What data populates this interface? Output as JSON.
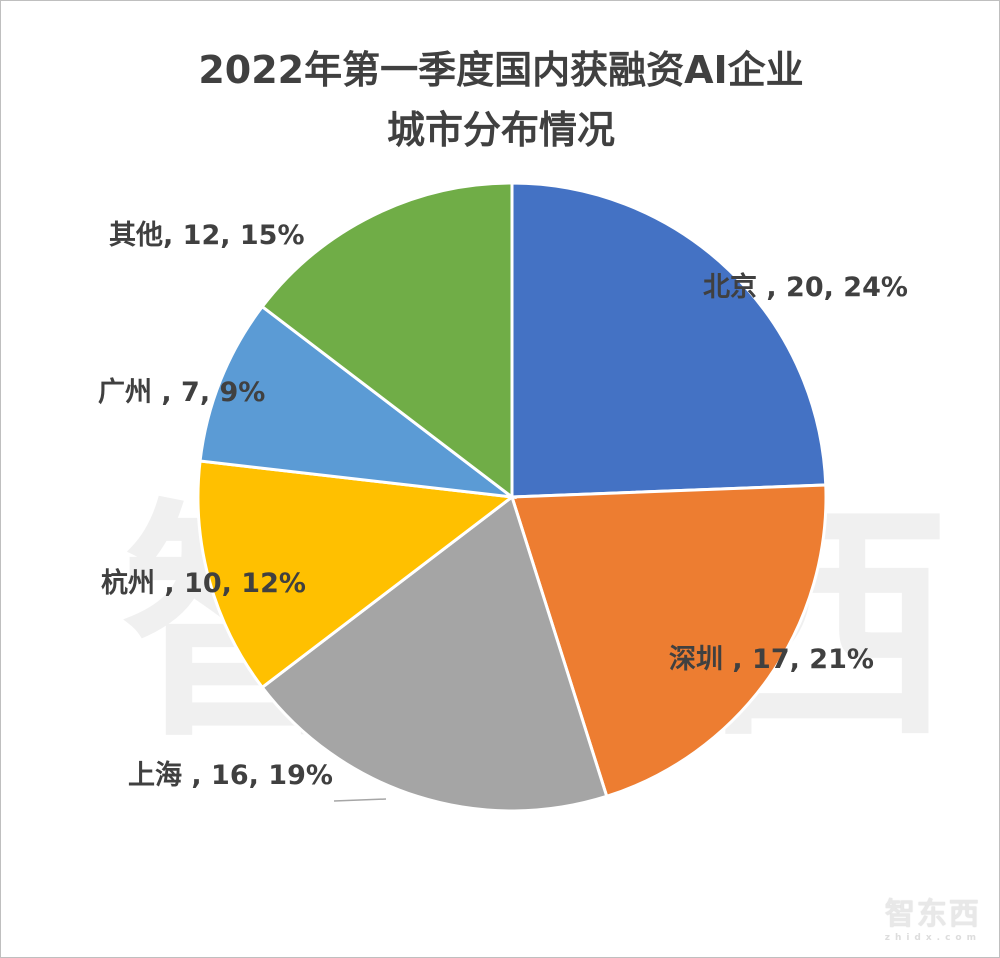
{
  "chart_data": {
    "type": "pie",
    "title_lines": [
      "2022年第一季度国内获融资AI企业",
      "城市分布情况"
    ],
    "start": "top",
    "direction": "clockwise",
    "slices": [
      {
        "name": "北京",
        "value": 20,
        "percent": 24,
        "color": "#4472C4",
        "label": "北京 , 20, 24%"
      },
      {
        "name": "深圳",
        "value": 17,
        "percent": 21,
        "color": "#ED7D31",
        "label": "深圳 , 17, 21%"
      },
      {
        "name": "上海",
        "value": 16,
        "percent": 19,
        "color": "#A5A5A5",
        "label": "上海 , 16, 19%"
      },
      {
        "name": "杭州",
        "value": 10,
        "percent": 12,
        "color": "#FFC000",
        "label": "杭州 , 10, 12%"
      },
      {
        "name": "广州",
        "value": 7,
        "percent": 9,
        "color": "#5B9BD5",
        "label": "广州 , 7, 9%"
      },
      {
        "name": "其他",
        "value": 12,
        "percent": 15,
        "color": "#70AD47",
        "label": "其他, 12, 15%"
      }
    ],
    "legend": "none"
  },
  "watermark": {
    "text": "智东西",
    "url_text": "zhidx.com"
  }
}
